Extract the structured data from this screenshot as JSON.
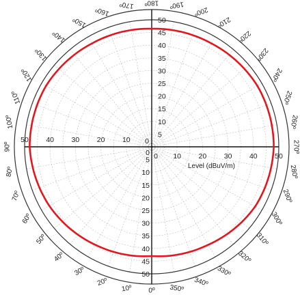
{
  "chart_data": {
    "type": "polar-line",
    "title": "",
    "radial_axis": {
      "label": "Level (dBuV/m)",
      "range": [
        0,
        50
      ],
      "ticks": [
        0,
        5,
        10,
        15,
        20,
        25,
        30,
        35,
        40,
        45,
        50
      ],
      "horizontal_tick_labels": [
        "0",
        "10",
        "20",
        "30",
        "40",
        "50"
      ]
    },
    "angular_axis": {
      "unit_symbol": "º",
      "step_degrees": 10,
      "zero_position": "bottom",
      "direction": "counterclockwise",
      "labels": [
        "0º",
        "10º",
        "20º",
        "30º",
        "40º",
        "50º",
        "60º",
        "70º",
        "80º",
        "90º",
        "100º",
        "110º",
        "120º",
        "130º",
        "140º",
        "150º",
        "160º",
        "170º",
        "180º",
        "190º",
        "200º",
        "210º",
        "220º",
        "230º",
        "240º",
        "250º",
        "260º",
        "270º",
        "280º",
        "290º",
        "300º",
        "310º",
        "320º",
        "330º",
        "340º",
        "350º"
      ]
    },
    "grid": true,
    "series": [
      {
        "color": "#e8141c",
        "angles_deg": [
          0,
          30,
          60,
          90,
          120,
          150,
          180,
          210,
          240,
          270,
          300,
          330
        ],
        "values": [
          43,
          44.5,
          46.5,
          48,
          48,
          47,
          46.5,
          47,
          48,
          48,
          47,
          44.5
        ]
      }
    ]
  }
}
